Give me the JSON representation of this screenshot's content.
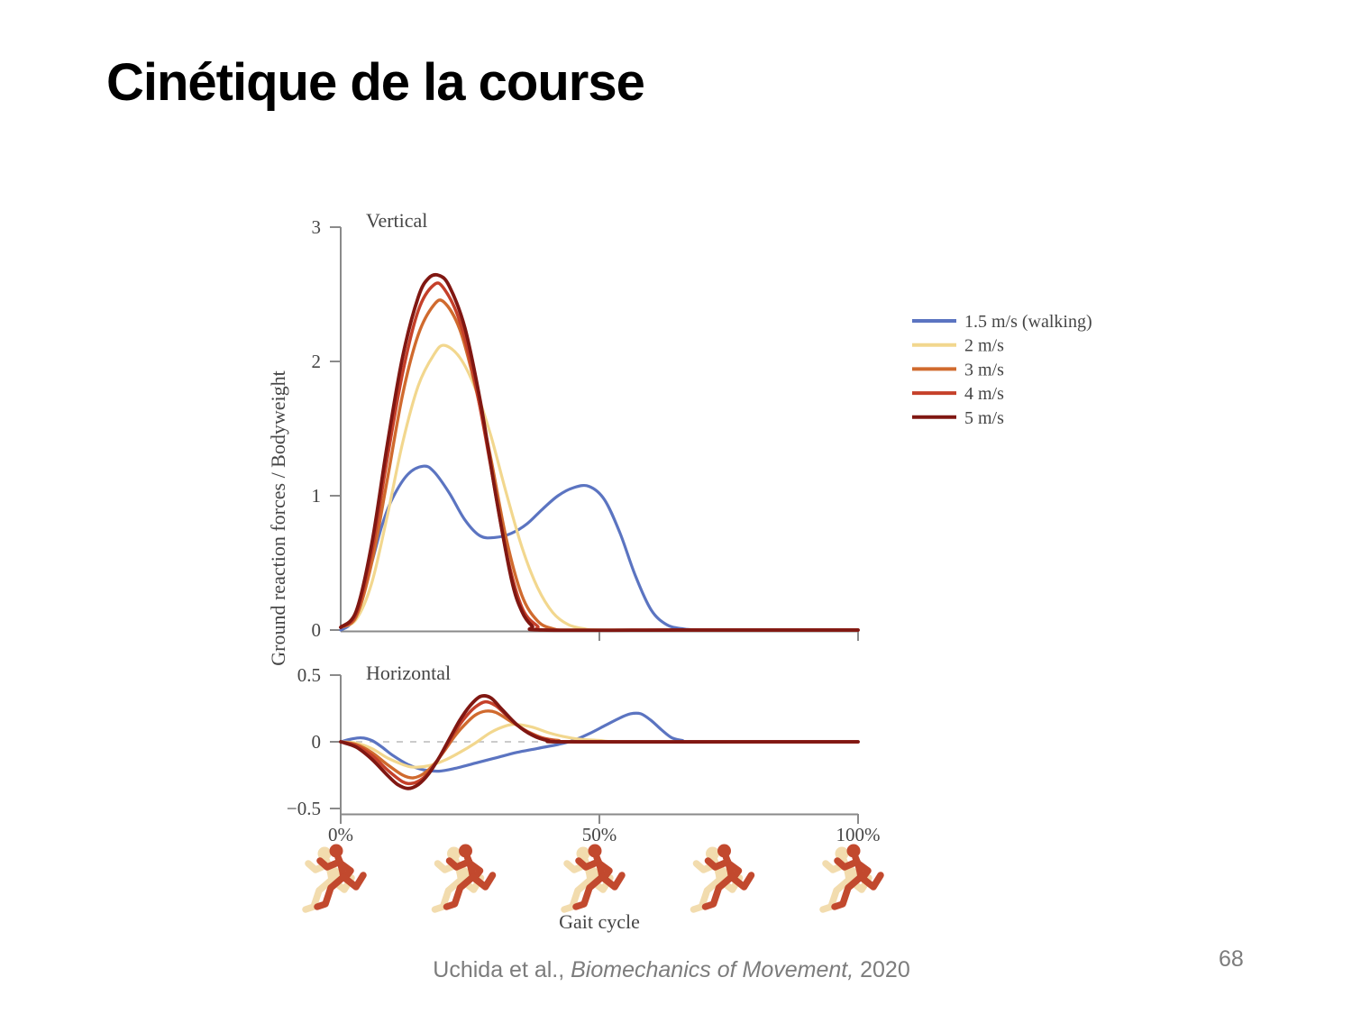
{
  "slide": {
    "title": "Cinétique de la course",
    "page_number": "68",
    "citation": {
      "prefix": "Uchida et al., ",
      "title": "Biomechanics of Movement,",
      "suffix": " 2020"
    }
  },
  "figure": {
    "ylabel": "Ground reaction forces / Bodyweight",
    "xlabel": "Gait cycle",
    "axis_color": "#8a8a8a",
    "text_color": "#454545",
    "zero_line_color": "#c4c4c4",
    "legend": [
      {
        "label": "1.5 m/s (walking)",
        "color": "#5b74c1"
      },
      {
        "label": "2 m/s",
        "color": "#f2d78e"
      },
      {
        "label": "3 m/s",
        "color": "#d06a2e"
      },
      {
        "label": "4 m/s",
        "color": "#c5402a"
      },
      {
        "label": "5 m/s",
        "color": "#801712"
      }
    ],
    "runners": {
      "positions_pct": [
        0,
        25,
        50,
        75,
        100
      ],
      "color": "#c2492e",
      "ghost_color": "#f2dcae"
    }
  },
  "chart_data": [
    {
      "type": "line",
      "title": "Vertical",
      "xlabel": "Gait cycle",
      "ylabel": "Ground reaction forces / Bodyweight",
      "xlim": [
        0,
        100
      ],
      "ylim": [
        0,
        3
      ],
      "yticks": [
        0,
        1,
        2,
        3
      ],
      "ytick_labels": [
        "0",
        "1",
        "2",
        "3"
      ],
      "xticks": [
        50,
        100
      ],
      "xtick_labels": [],
      "grid": false,
      "legend_position": "right",
      "series": [
        {
          "name": "1.5 m/s (walking)",
          "color": "#5b74c1",
          "points": [
            [
              0,
              0
            ],
            [
              2,
              0.05
            ],
            [
              4,
              0.22
            ],
            [
              6,
              0.5
            ],
            [
              8,
              0.78
            ],
            [
              10,
              0.98
            ],
            [
              13,
              1.16
            ],
            [
              16,
              1.22
            ],
            [
              18,
              1.18
            ],
            [
              21,
              1.02
            ],
            [
              24,
              0.82
            ],
            [
              27,
              0.7
            ],
            [
              30,
              0.69
            ],
            [
              33,
              0.72
            ],
            [
              36,
              0.79
            ],
            [
              39,
              0.9
            ],
            [
              42,
              1.0
            ],
            [
              45,
              1.06
            ],
            [
              48,
              1.07
            ],
            [
              51,
              0.97
            ],
            [
              54,
              0.72
            ],
            [
              57,
              0.4
            ],
            [
              60,
              0.15
            ],
            [
              63,
              0.04
            ],
            [
              66,
              0.01
            ],
            [
              70,
              0
            ],
            [
              85,
              0
            ],
            [
              100,
              0
            ]
          ]
        },
        {
          "name": "2 m/s",
          "color": "#f2d78e",
          "points": [
            [
              0,
              0.02
            ],
            [
              3,
              0.08
            ],
            [
              6,
              0.35
            ],
            [
              9,
              0.85
            ],
            [
              12,
              1.4
            ],
            [
              15,
              1.82
            ],
            [
              18,
              2.05
            ],
            [
              20,
              2.12
            ],
            [
              23,
              2.03
            ],
            [
              26,
              1.8
            ],
            [
              29,
              1.45
            ],
            [
              32,
              1.02
            ],
            [
              35,
              0.62
            ],
            [
              38,
              0.32
            ],
            [
              41,
              0.13
            ],
            [
              44,
              0.04
            ],
            [
              47,
              0.01
            ],
            [
              50,
              0
            ],
            [
              65,
              0
            ],
            [
              85,
              0
            ],
            [
              100,
              0
            ]
          ]
        },
        {
          "name": "3 m/s",
          "color": "#d06a2e",
          "points": [
            [
              0,
              0.02
            ],
            [
              3,
              0.1
            ],
            [
              6,
              0.5
            ],
            [
              9,
              1.12
            ],
            [
              12,
              1.76
            ],
            [
              15,
              2.2
            ],
            [
              18,
              2.42
            ],
            [
              20,
              2.44
            ],
            [
              23,
              2.24
            ],
            [
              26,
              1.82
            ],
            [
              29,
              1.28
            ],
            [
              32,
              0.68
            ],
            [
              35,
              0.26
            ],
            [
              38,
              0.07
            ],
            [
              41,
              0.01
            ],
            [
              45,
              0
            ],
            [
              65,
              0
            ],
            [
              85,
              0
            ],
            [
              100,
              0
            ]
          ]
        },
        {
          "name": "4 m/s",
          "color": "#c5402a",
          "points": [
            [
              0,
              0.02
            ],
            [
              3,
              0.12
            ],
            [
              6,
              0.58
            ],
            [
              9,
              1.28
            ],
            [
              12,
              1.92
            ],
            [
              15,
              2.38
            ],
            [
              18,
              2.57
            ],
            [
              20,
              2.54
            ],
            [
              23,
              2.3
            ],
            [
              26,
              1.84
            ],
            [
              29,
              1.22
            ],
            [
              32,
              0.58
            ],
            [
              35,
              0.17
            ],
            [
              38,
              0.03
            ],
            [
              40,
              0
            ],
            [
              65,
              0
            ],
            [
              85,
              0
            ],
            [
              100,
              0
            ]
          ]
        },
        {
          "name": "5 m/s",
          "color": "#801712",
          "points": [
            [
              0,
              0.02
            ],
            [
              3,
              0.14
            ],
            [
              6,
              0.64
            ],
            [
              9,
              1.38
            ],
            [
              12,
              2.04
            ],
            [
              15,
              2.48
            ],
            [
              17,
              2.62
            ],
            [
              19,
              2.64
            ],
            [
              21,
              2.56
            ],
            [
              24,
              2.25
            ],
            [
              27,
              1.7
            ],
            [
              30,
              1.0
            ],
            [
              33,
              0.38
            ],
            [
              35,
              0.14
            ],
            [
              37,
              0.03
            ],
            [
              39,
              0
            ],
            [
              65,
              0
            ],
            [
              85,
              0
            ],
            [
              100,
              0
            ]
          ]
        }
      ]
    },
    {
      "type": "line",
      "title": "Horizontal",
      "xlabel": "Gait cycle",
      "xlim": [
        0,
        100
      ],
      "ylim": [
        -0.5,
        0.5
      ],
      "yticks": [
        -0.5,
        0,
        0.5
      ],
      "ytick_labels": [
        "−0.5",
        "0",
        "0.5"
      ],
      "xticks": [
        0,
        50,
        100
      ],
      "xtick_labels": [
        "0%",
        "50%",
        "100%"
      ],
      "grid": false,
      "zero_line_dashed": true,
      "series": [
        {
          "name": "1.5 m/s (walking)",
          "color": "#5b74c1",
          "points": [
            [
              0,
              0
            ],
            [
              2,
              0.02
            ],
            [
              4,
              0.03
            ],
            [
              6,
              0.01
            ],
            [
              8,
              -0.04
            ],
            [
              10,
              -0.1
            ],
            [
              13,
              -0.17
            ],
            [
              16,
              -0.21
            ],
            [
              19,
              -0.22
            ],
            [
              22,
              -0.2
            ],
            [
              26,
              -0.16
            ],
            [
              30,
              -0.12
            ],
            [
              34,
              -0.08
            ],
            [
              38,
              -0.05
            ],
            [
              42,
              -0.02
            ],
            [
              45,
              0.01
            ],
            [
              48,
              0.06
            ],
            [
              51,
              0.12
            ],
            [
              54,
              0.18
            ],
            [
              56,
              0.21
            ],
            [
              58,
              0.21
            ],
            [
              60,
              0.16
            ],
            [
              62,
              0.09
            ],
            [
              64,
              0.03
            ],
            [
              66,
              0.01
            ],
            [
              68,
              0
            ],
            [
              85,
              0
            ],
            [
              100,
              0
            ]
          ]
        },
        {
          "name": "2 m/s",
          "color": "#f2d78e",
          "points": [
            [
              0,
              0
            ],
            [
              3,
              -0.01
            ],
            [
              6,
              -0.05
            ],
            [
              9,
              -0.12
            ],
            [
              12,
              -0.17
            ],
            [
              14,
              -0.19
            ],
            [
              17,
              -0.18
            ],
            [
              20,
              -0.14
            ],
            [
              23,
              -0.08
            ],
            [
              26,
              -0.01
            ],
            [
              29,
              0.07
            ],
            [
              32,
              0.12
            ],
            [
              34,
              0.13
            ],
            [
              37,
              0.11
            ],
            [
              40,
              0.07
            ],
            [
              43,
              0.04
            ],
            [
              46,
              0.02
            ],
            [
              50,
              0.01
            ],
            [
              55,
              0
            ],
            [
              80,
              0
            ],
            [
              100,
              0
            ]
          ]
        },
        {
          "name": "3 m/s",
          "color": "#d06a2e",
          "points": [
            [
              0,
              0
            ],
            [
              3,
              -0.02
            ],
            [
              6,
              -0.08
            ],
            [
              9,
              -0.17
            ],
            [
              12,
              -0.25
            ],
            [
              14,
              -0.27
            ],
            [
              16,
              -0.24
            ],
            [
              18,
              -0.17
            ],
            [
              20,
              -0.07
            ],
            [
              22,
              0.04
            ],
            [
              24,
              0.13
            ],
            [
              26,
              0.2
            ],
            [
              28,
              0.23
            ],
            [
              30,
              0.22
            ],
            [
              33,
              0.15
            ],
            [
              36,
              0.08
            ],
            [
              39,
              0.03
            ],
            [
              42,
              0.01
            ],
            [
              46,
              0
            ],
            [
              80,
              0
            ],
            [
              100,
              0
            ]
          ]
        },
        {
          "name": "4 m/s",
          "color": "#c5402a",
          "points": [
            [
              0,
              0
            ],
            [
              3,
              -0.03
            ],
            [
              6,
              -0.1
            ],
            [
              9,
              -0.21
            ],
            [
              12,
              -0.3
            ],
            [
              14,
              -0.31
            ],
            [
              16,
              -0.27
            ],
            [
              18,
              -0.18
            ],
            [
              20,
              -0.06
            ],
            [
              22,
              0.07
            ],
            [
              24,
              0.18
            ],
            [
              26,
              0.26
            ],
            [
              28,
              0.3
            ],
            [
              30,
              0.27
            ],
            [
              32,
              0.2
            ],
            [
              35,
              0.1
            ],
            [
              38,
              0.04
            ],
            [
              41,
              0.01
            ],
            [
              45,
              0
            ],
            [
              80,
              0
            ],
            [
              100,
              0
            ]
          ]
        },
        {
          "name": "5 m/s",
          "color": "#801712",
          "points": [
            [
              0,
              0
            ],
            [
              3,
              -0.04
            ],
            [
              6,
              -0.13
            ],
            [
              9,
              -0.25
            ],
            [
              11,
              -0.32
            ],
            [
              13,
              -0.35
            ],
            [
              15,
              -0.32
            ],
            [
              17,
              -0.24
            ],
            [
              19,
              -0.12
            ],
            [
              21,
              0.02
            ],
            [
              23,
              0.16
            ],
            [
              25,
              0.27
            ],
            [
              27,
              0.34
            ],
            [
              29,
              0.33
            ],
            [
              31,
              0.25
            ],
            [
              34,
              0.13
            ],
            [
              37,
              0.05
            ],
            [
              40,
              0.01
            ],
            [
              44,
              0
            ],
            [
              80,
              0
            ],
            [
              100,
              0
            ]
          ]
        }
      ]
    }
  ]
}
